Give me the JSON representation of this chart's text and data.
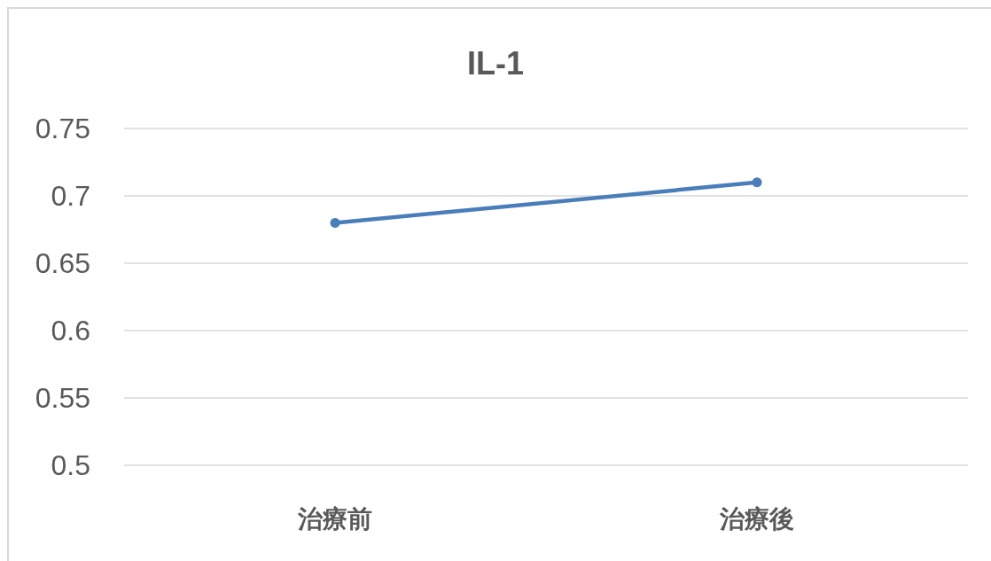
{
  "chart_data": {
    "type": "line",
    "title": "IL-1",
    "categories": [
      "治療前",
      "治療後"
    ],
    "series": [
      {
        "color": "#4a7ebb",
        "values": [
          0.68,
          0.71
        ]
      }
    ],
    "ylim": [
      0.5,
      0.75
    ],
    "yticks": [
      0.5,
      0.55,
      0.6,
      0.65,
      0.7,
      0.75
    ],
    "grid": "y",
    "legend": false,
    "marker": "circle",
    "line_style": "solid"
  }
}
